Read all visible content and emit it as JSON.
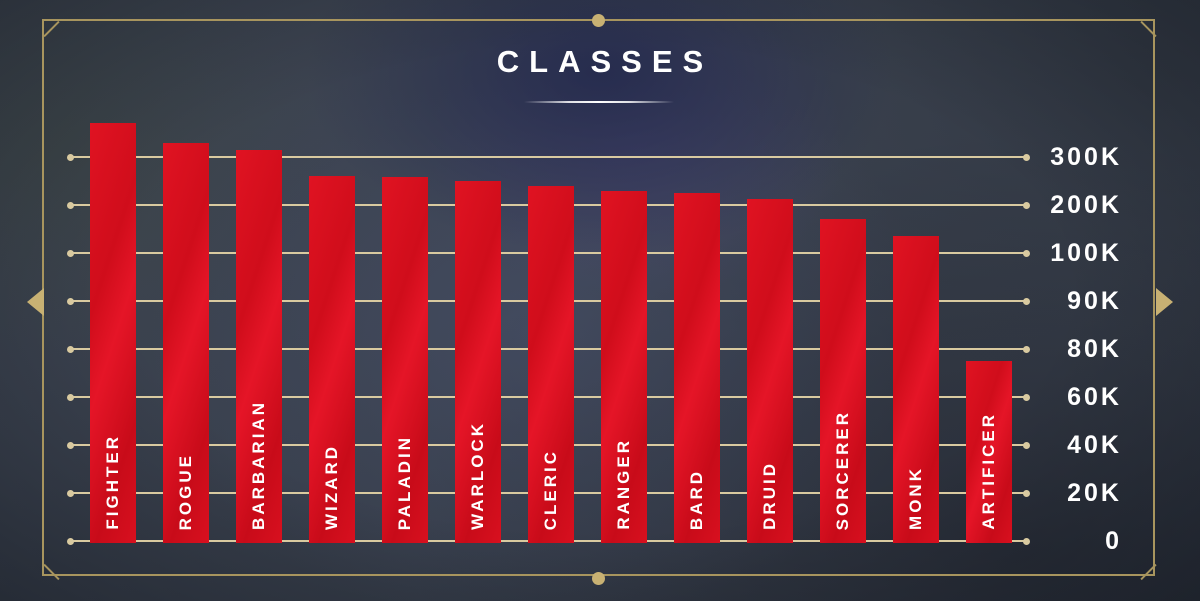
{
  "title": "CLASSES",
  "colors": {
    "background": "#39404d",
    "frame_gold": "#a8955e",
    "ornament_gold": "#c8b173",
    "gridline_gold": "#d9caa0",
    "bar_red": "#d8101f",
    "text_white": "#ffffff"
  },
  "ornaments": {
    "top_center": "circle-dot",
    "bottom_center": "circle-dot",
    "left_middle": "left-arrowhead",
    "right_middle": "right-arrowhead",
    "corners": "diagonal-notch"
  },
  "chart_data": {
    "type": "bar",
    "title": "CLASSES",
    "categories": [
      "FIGHTER",
      "ROGUE",
      "BARBARIAN",
      "WIZARD",
      "PALADIN",
      "WARLOCK",
      "CLERIC",
      "RANGER",
      "BARD",
      "DRUID",
      "SORCERER",
      "MONK",
      "ARTIFICER"
    ],
    "values": [
      370000,
      330000,
      315000,
      260000,
      258000,
      250000,
      240000,
      230000,
      225000,
      212000,
      170000,
      135000,
      75000
    ],
    "bar_color": "#d8101f",
    "label_position": "inside-bottom-vertical",
    "grid": true,
    "y_axis": {
      "side": "right",
      "scale": "piecewise-equal-interval",
      "tick_labels_top_to_bottom": [
        "300K",
        "200K",
        "100K",
        "90K",
        "80K",
        "60K",
        "40K",
        "20K",
        "0"
      ],
      "tick_values_top_to_bottom": [
        300000,
        200000,
        100000,
        90000,
        80000,
        60000,
        40000,
        20000,
        0
      ]
    }
  }
}
